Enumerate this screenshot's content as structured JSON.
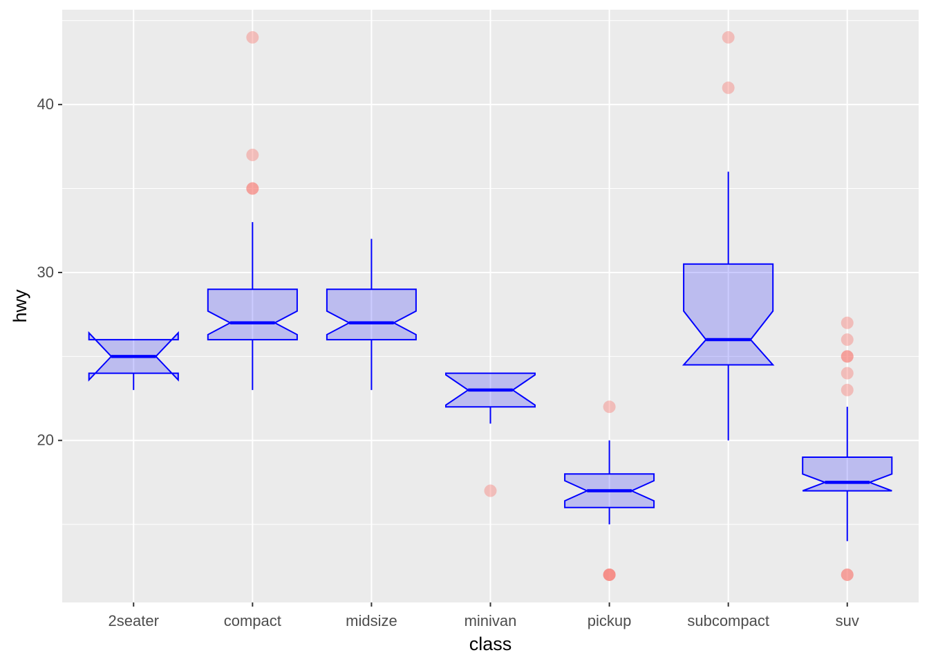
{
  "chart_data": {
    "type": "boxplot",
    "notched": true,
    "xlabel": "class",
    "ylabel": "hwy",
    "ylim": [
      10.35,
      45.65
    ],
    "y_ticks": [
      20,
      30,
      40
    ],
    "y_minor_ticks": [
      15,
      25,
      35,
      45
    ],
    "grid": true,
    "panel_background": "#ebebeb",
    "box_color": "#0000ff",
    "box_fill": "#0000ff",
    "box_fill_alpha": 0.2,
    "outlier_color": "#f8766d",
    "outlier_alpha": 0.4,
    "categories": [
      "2seater",
      "compact",
      "midsize",
      "minivan",
      "pickup",
      "subcompact",
      "suv"
    ],
    "boxes": [
      {
        "category": "2seater",
        "min": 23,
        "q1": 24,
        "median": 25,
        "q3": 26,
        "max": 26,
        "notch_low": 23.6,
        "notch_high": 26.4,
        "outliers": []
      },
      {
        "category": "compact",
        "min": 23,
        "q1": 26,
        "median": 27,
        "q3": 29,
        "max": 33,
        "notch_low": 26.3,
        "notch_high": 27.7,
        "outliers": [
          44,
          37,
          35,
          35
        ]
      },
      {
        "category": "midsize",
        "min": 23,
        "q1": 26,
        "median": 27,
        "q3": 29,
        "max": 32,
        "notch_low": 26.3,
        "notch_high": 27.7,
        "outliers": []
      },
      {
        "category": "minivan",
        "min": 21,
        "q1": 22,
        "median": 23,
        "q3": 24,
        "max": 24,
        "notch_low": 22.1,
        "notch_high": 23.9,
        "outliers": [
          17
        ]
      },
      {
        "category": "pickup",
        "min": 15,
        "q1": 16,
        "median": 17,
        "q3": 18,
        "max": 20,
        "notch_low": 16.4,
        "notch_high": 17.6,
        "outliers": [
          22,
          12,
          12,
          12
        ]
      },
      {
        "category": "subcompact",
        "min": 20,
        "q1": 24.5,
        "median": 26,
        "q3": 30.5,
        "max": 36,
        "notch_low": 24.5,
        "notch_high": 27.7,
        "outliers": [
          44,
          41
        ]
      },
      {
        "category": "suv",
        "min": 14,
        "q1": 17,
        "median": 17.5,
        "q3": 19,
        "max": 22,
        "notch_low": 17.0,
        "notch_high": 18.0,
        "outliers": [
          27,
          26,
          25,
          25,
          24,
          23,
          12,
          12
        ]
      }
    ]
  }
}
